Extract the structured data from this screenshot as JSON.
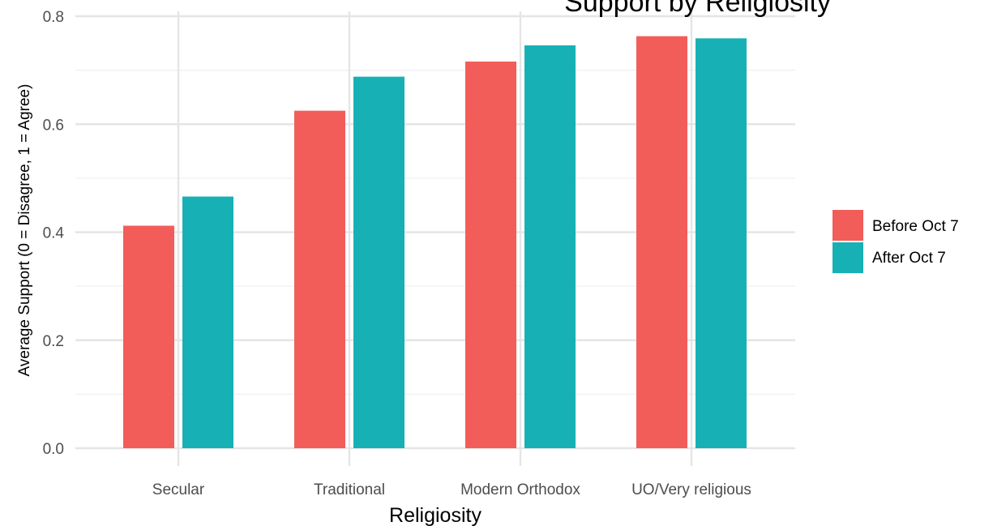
{
  "chart_data": {
    "type": "bar",
    "title": "Support by Religiosity",
    "xlabel": "Religiosity",
    "ylabel": "Average Support (0 = Disagree, 1 = Agree)",
    "categories": [
      "Secular",
      "Traditional",
      "Modern Orthodox",
      "UO/Very religious"
    ],
    "series": [
      {
        "name": "Before Oct 7",
        "color": "#F25D5A",
        "values": [
          0.412,
          0.625,
          0.716,
          0.763
        ]
      },
      {
        "name": "After Oct 7",
        "color": "#17B1B5",
        "values": [
          0.466,
          0.688,
          0.746,
          0.759
        ]
      }
    ],
    "ylim": [
      0,
      0.8
    ],
    "yticks": [
      "0.0",
      "0.2",
      "0.4",
      "0.6",
      "0.8"
    ],
    "grid": true,
    "legend_position": "right"
  }
}
